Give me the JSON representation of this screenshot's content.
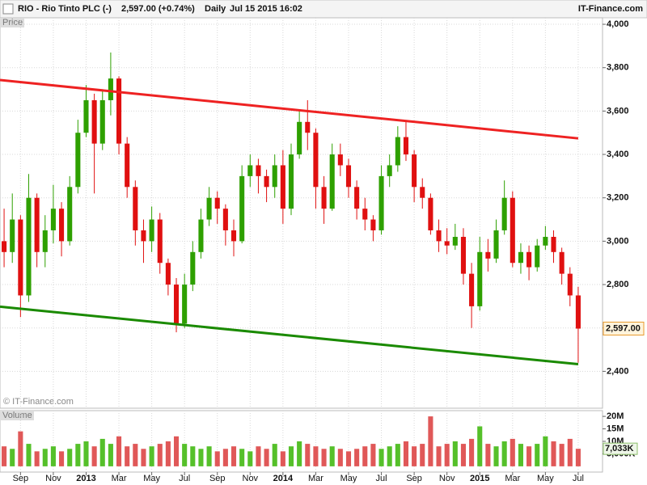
{
  "header": {
    "symbol": "RIO - Rio Tinto PLC (-)",
    "quote": "2,597.00 (+0.74%)",
    "period": "Daily",
    "timestamp": "Jul 15 2015 16:02",
    "brand": "IT-Finance.com"
  },
  "chart_data": [
    {
      "type": "candlestick",
      "title": "Price",
      "watermark": "© IT-Finance.com",
      "categories": [
        null,
        null,
        "Sep",
        null,
        null,
        null,
        "Nov",
        null,
        null,
        null,
        "2013",
        null,
        null,
        null,
        "Mar",
        null,
        null,
        null,
        "May",
        null,
        null,
        null,
        "Jul",
        null,
        null,
        null,
        "Sep",
        null,
        null,
        null,
        "Nov",
        null,
        null,
        null,
        "2014",
        null,
        null,
        null,
        "Mar",
        null,
        null,
        null,
        "May",
        null,
        null,
        null,
        "Jul",
        null,
        null,
        null,
        "Sep",
        null,
        null,
        null,
        "Nov",
        null,
        null,
        null,
        "2015",
        null,
        null,
        null,
        "Mar",
        null,
        null,
        null,
        "May",
        null,
        null,
        null,
        "Jul"
      ],
      "open": [
        3000,
        2950,
        3100,
        2750,
        3200,
        2950,
        3050,
        3150,
        3000,
        3250,
        3500,
        3650,
        3450,
        3650,
        3750,
        3450,
        3250,
        3050,
        3000,
        3100,
        2900,
        2800,
        2620,
        2800,
        2950,
        3100,
        3200,
        3150,
        3050,
        3000,
        3300,
        3350,
        3300,
        3250,
        3350,
        3150,
        3400,
        3550,
        3500,
        3250,
        3150,
        3400,
        3350,
        3250,
        3150,
        3100,
        3050,
        3300,
        3350,
        3480,
        3400,
        3250,
        3200,
        3050,
        3000,
        2980,
        3020,
        2850,
        2700,
        2950,
        2920,
        3050,
        3200,
        2900,
        2950,
        2880,
        2980,
        3020,
        2950,
        2850,
        2750
      ],
      "high": [
        3150,
        3220,
        3120,
        3310,
        3220,
        3120,
        3260,
        3180,
        3300,
        3560,
        3720,
        3680,
        3700,
        3870,
        3760,
        3480,
        3280,
        3100,
        3160,
        3130,
        2920,
        2830,
        2850,
        3000,
        3150,
        3250,
        3230,
        3170,
        3100,
        3350,
        3400,
        3380,
        3330,
        3400,
        3420,
        3450,
        3600,
        3650,
        3520,
        3300,
        3450,
        3450,
        3380,
        3280,
        3200,
        3120,
        3350,
        3400,
        3530,
        3550,
        3420,
        3290,
        3220,
        3100,
        3060,
        3080,
        3060,
        2900,
        3020,
        3010,
        3100,
        3280,
        3230,
        2990,
        2980,
        3010,
        3070,
        3050,
        2970,
        2880,
        2790
      ],
      "low": [
        2880,
        2900,
        2650,
        2720,
        2880,
        2880,
        2990,
        2930,
        2980,
        3220,
        3480,
        3220,
        3420,
        3580,
        3400,
        3200,
        2980,
        2900,
        2950,
        2850,
        2750,
        2580,
        2600,
        2770,
        2920,
        3070,
        3080,
        2980,
        2930,
        2990,
        3250,
        3220,
        3180,
        3200,
        3080,
        3120,
        3380,
        3420,
        3150,
        3080,
        3140,
        3300,
        3200,
        3100,
        3050,
        3000,
        3030,
        3250,
        3320,
        3370,
        3180,
        3150,
        3030,
        2950,
        2940,
        2960,
        2800,
        2600,
        2680,
        2860,
        2900,
        3030,
        2880,
        2850,
        2820,
        2860,
        2960,
        2900,
        2800,
        2700,
        2440
      ],
      "close": [
        2950,
        3100,
        2750,
        3200,
        2950,
        3050,
        3150,
        3000,
        3250,
        3500,
        3650,
        3450,
        3650,
        3750,
        3450,
        3250,
        3050,
        3000,
        3100,
        2900,
        2800,
        2620,
        2800,
        2950,
        3100,
        3200,
        3150,
        3050,
        3000,
        3300,
        3350,
        3300,
        3250,
        3350,
        3150,
        3400,
        3550,
        3500,
        3250,
        3150,
        3400,
        3350,
        3250,
        3150,
        3100,
        3050,
        3300,
        3350,
        3480,
        3400,
        3250,
        3200,
        3050,
        3000,
        2980,
        3020,
        2850,
        2700,
        2950,
        2920,
        3050,
        3200,
        2900,
        2950,
        2880,
        2980,
        3020,
        2950,
        2850,
        2750,
        2597
      ],
      "up_color": "#2ea000",
      "down_color": "#e01010",
      "ylim": [
        2230,
        4030
      ],
      "yticks": [
        {
          "value": 2400,
          "label": "2,400"
        },
        {
          "value": 2600,
          "label": "2,600"
        },
        {
          "value": 2800,
          "label": "2,800"
        },
        {
          "value": 3000,
          "label": "3,000"
        },
        {
          "value": 3200,
          "label": "3,200"
        },
        {
          "value": 3400,
          "label": "3,400"
        },
        {
          "value": 3600,
          "label": "3,600"
        },
        {
          "value": 3800,
          "label": "3,800"
        },
        {
          "value": 4000,
          "label": "4,000"
        }
      ],
      "grid": true,
      "last_price": {
        "value": 2597,
        "label": "2,597.00"
      },
      "trendlines": [
        {
          "color": "#ee2222",
          "values": [
            3743,
            3474
          ]
        },
        {
          "color": "#1a8a00",
          "values": [
            2698,
            2433
          ]
        }
      ]
    },
    {
      "type": "bar",
      "title": "Volume",
      "values": [
        8,
        7,
        14,
        9,
        6,
        7,
        8,
        6,
        7,
        9,
        10,
        8,
        11,
        9,
        12,
        8,
        9,
        7,
        8,
        9,
        10,
        12,
        9,
        8,
        7,
        8,
        6,
        7,
        8,
        7,
        6,
        8,
        7,
        9,
        6,
        8,
        10,
        9,
        8,
        7,
        8,
        7,
        6,
        7,
        8,
        9,
        7,
        8,
        9,
        10,
        8,
        9,
        20,
        8,
        9,
        10,
        9,
        11,
        16,
        9,
        8,
        10,
        11,
        9,
        8,
        9,
        12,
        10,
        9,
        11,
        7.033
      ],
      "up_color": "#55c02a",
      "down_color": "#e05858",
      "ylim": [
        -2.3,
        22.3
      ],
      "yticks": [
        {
          "value": 5,
          "label": "5,000K"
        },
        {
          "value": 10,
          "label": "10M"
        },
        {
          "value": 15,
          "label": "15M"
        },
        {
          "value": 20,
          "label": "20M"
        }
      ],
      "last_value": {
        "value": 7.033,
        "label": "7,033K"
      }
    }
  ]
}
